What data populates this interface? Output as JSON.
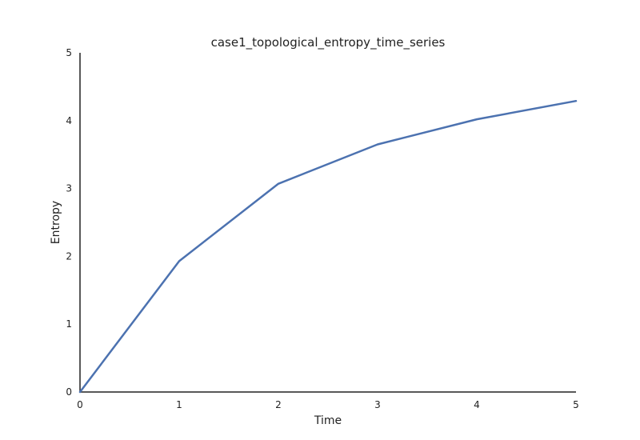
{
  "chart_data": {
    "type": "line",
    "title": "case1_topological_entropy_time_series",
    "xlabel": "Time",
    "ylabel": "Entropy",
    "xlim": [
      0,
      5
    ],
    "ylim": [
      0,
      5
    ],
    "x_ticks": [
      "0",
      "1",
      "2",
      "3",
      "4",
      "5"
    ],
    "y_ticks": [
      "0",
      "1",
      "2",
      "3",
      "4",
      "5"
    ],
    "grid": false,
    "legend": "none",
    "series": [
      {
        "color": "#4c72b0",
        "x": [
          0,
          1,
          2,
          3,
          4,
          5
        ],
        "y": [
          0,
          1.93,
          3.07,
          3.65,
          4.02,
          4.29
        ]
      }
    ]
  }
}
